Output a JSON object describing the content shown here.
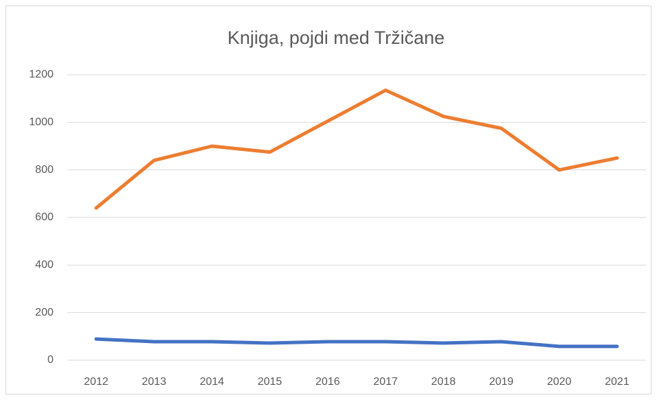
{
  "chart_data": {
    "type": "line",
    "title": "Knjiga, pojdi med Tržičane",
    "categories": [
      "2012",
      "2013",
      "2014",
      "2015",
      "2016",
      "2017",
      "2018",
      "2019",
      "2020",
      "2021"
    ],
    "series": [
      {
        "color": "#ed7d31",
        "values": [
          640,
          840,
          900,
          875,
          1005,
          1135,
          1025,
          975,
          800,
          850
        ]
      },
      {
        "color": "#4472c4",
        "values": [
          89,
          78,
          78,
          72,
          78,
          78,
          72,
          78,
          58,
          58
        ]
      }
    ],
    "ylim": [
      0,
      1200
    ],
    "yticks": [
      0,
      200,
      400,
      600,
      800,
      1000,
      1200
    ],
    "grid": true
  }
}
